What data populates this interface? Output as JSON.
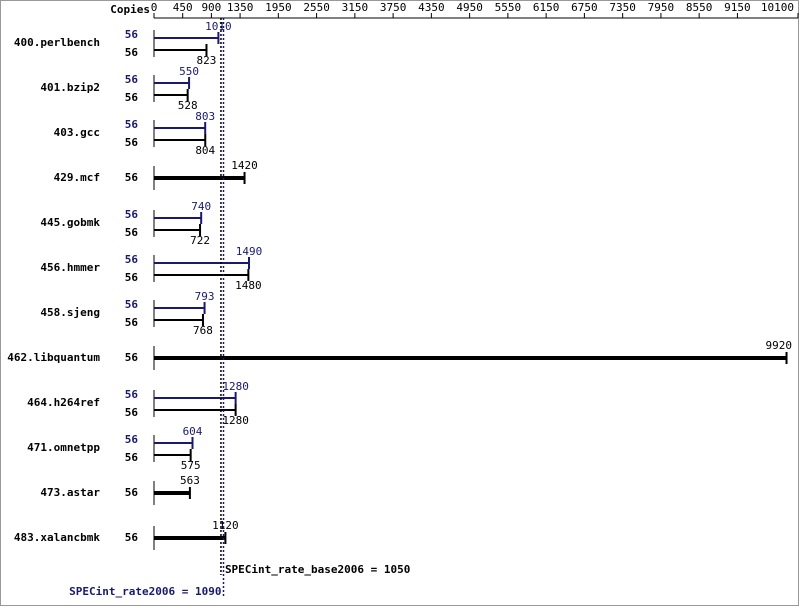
{
  "chart_data": {
    "type": "bar",
    "axis_label": "Copies",
    "categories": [
      "400.perlbench",
      "401.bzip2",
      "403.gcc",
      "429.mcf",
      "445.gobmk",
      "456.hmmer",
      "458.sjeng",
      "462.libquantum",
      "464.h264ref",
      "471.omnetpp",
      "473.astar",
      "483.xalancbmk"
    ],
    "series": [
      {
        "color": "#191970",
        "values": [
          1010,
          550,
          803,
          null,
          740,
          1490,
          793,
          null,
          1280,
          604,
          null,
          null
        ],
        "copies": [
          56,
          56,
          56,
          null,
          56,
          56,
          56,
          null,
          56,
          56,
          null,
          null
        ]
      },
      {
        "color": "#000000",
        "values": [
          823,
          528,
          804,
          1420,
          722,
          1480,
          768,
          9920,
          1280,
          575,
          563,
          1120
        ],
        "copies": [
          56,
          56,
          56,
          56,
          56,
          56,
          56,
          56,
          56,
          56,
          56,
          56
        ]
      }
    ],
    "xlim": [
      0,
      10100
    ],
    "xticks": [
      0,
      450,
      900,
      1350,
      1950,
      2550,
      3150,
      3750,
      4350,
      4950,
      5550,
      6150,
      6750,
      7350,
      7950,
      8550,
      9150,
      10100
    ],
    "annotations": [
      {
        "text": "SPECint_rate_base2006 = 1050",
        "value": 1050,
        "color": "#000000"
      },
      {
        "text": "SPECint_rate2006 = 1090",
        "value": 1090,
        "color": "#191970"
      }
    ]
  }
}
